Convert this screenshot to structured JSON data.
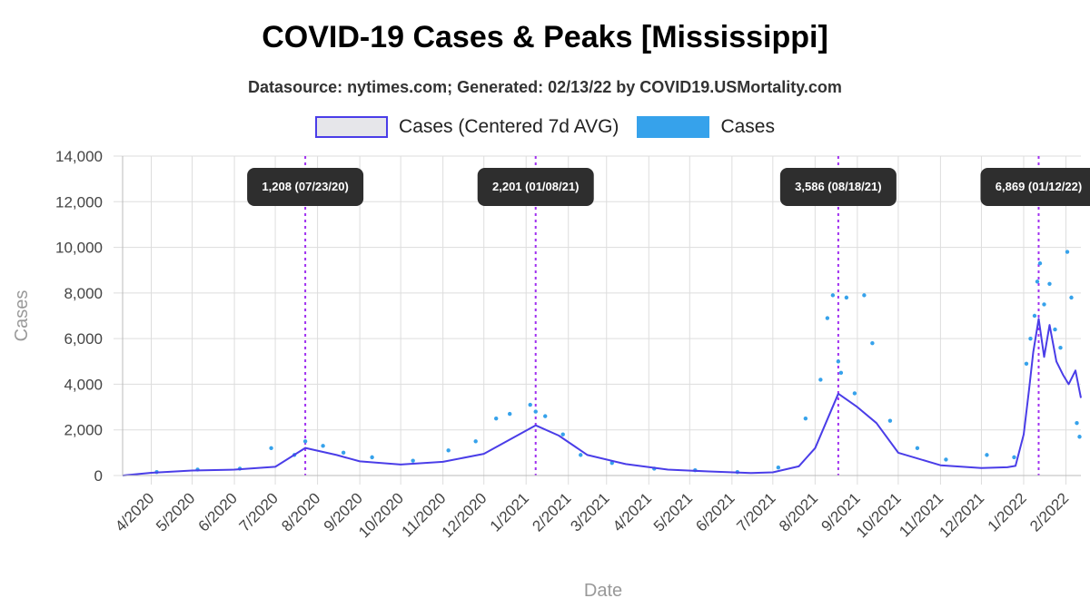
{
  "header": {
    "title": "COVID-19 Cases & Peaks [Mississippi]",
    "subtitle": "Datasource: nytimes.com; Generated: 02/13/22 by COVID19.USMortality.com"
  },
  "legend": {
    "avg_label": "Cases (Centered 7d AVG)",
    "cases_label": "Cases"
  },
  "colors": {
    "avg_line": "#4a3de8",
    "cases_points": "#36a2eb",
    "peak_line": "#a030f0",
    "peak_label_bg": "#2e2e2e",
    "grid": "#dddddd"
  },
  "chart_data": {
    "type": "line",
    "title": "COVID-19 Cases & Peaks [Mississippi]",
    "xlabel": "Date",
    "ylabel": "Cases",
    "ylim": [
      0,
      14000
    ],
    "yticks": [
      0,
      2000,
      4000,
      6000,
      8000,
      10000,
      12000,
      14000
    ],
    "ytick_labels": [
      "0",
      "2,000",
      "4,000",
      "6,000",
      "8,000",
      "10,000",
      "12,000",
      "14,000"
    ],
    "xlim": [
      "2020-03-11",
      "2022-02-12"
    ],
    "xticks": [
      "2020-04-01",
      "2020-05-01",
      "2020-06-01",
      "2020-07-01",
      "2020-08-01",
      "2020-09-01",
      "2020-10-01",
      "2020-11-01",
      "2020-12-01",
      "2021-01-01",
      "2021-02-01",
      "2021-03-01",
      "2021-04-01",
      "2021-05-01",
      "2021-06-01",
      "2021-07-01",
      "2021-08-01",
      "2021-09-01",
      "2021-10-01",
      "2021-11-01",
      "2021-12-01",
      "2022-01-01",
      "2022-02-01"
    ],
    "xtick_labels": [
      "4/2020",
      "5/2020",
      "6/2020",
      "7/2020",
      "8/2020",
      "9/2020",
      "10/2020",
      "11/2020",
      "12/2020",
      "1/2021",
      "2/2021",
      "3/2021",
      "4/2021",
      "5/2021",
      "6/2021",
      "7/2021",
      "8/2021",
      "9/2021",
      "10/2021",
      "11/2021",
      "12/2021",
      "1/2022",
      "2/2022"
    ],
    "grid": true,
    "legend_position": "top",
    "series": [
      {
        "name": "Cases (Centered 7d AVG)",
        "type": "line",
        "x": [
          "2020-03-11",
          "2020-04-01",
          "2020-05-01",
          "2020-06-01",
          "2020-07-01",
          "2020-07-23",
          "2020-08-15",
          "2020-09-01",
          "2020-10-01",
          "2020-11-01",
          "2020-12-01",
          "2021-01-08",
          "2021-01-25",
          "2021-02-15",
          "2021-03-15",
          "2021-04-15",
          "2021-05-15",
          "2021-06-15",
          "2021-07-01",
          "2021-07-20",
          "2021-08-01",
          "2021-08-18",
          "2021-09-01",
          "2021-09-15",
          "2021-10-01",
          "2021-11-01",
          "2021-12-01",
          "2021-12-20",
          "2021-12-26",
          "2022-01-01",
          "2022-01-05",
          "2022-01-08",
          "2022-01-12",
          "2022-01-16",
          "2022-01-20",
          "2022-01-25",
          "2022-01-30",
          "2022-02-03",
          "2022-02-08",
          "2022-02-12"
        ],
        "y": [
          0,
          120,
          220,
          260,
          380,
          1208,
          900,
          620,
          480,
          600,
          950,
          2201,
          1750,
          900,
          500,
          260,
          180,
          110,
          140,
          400,
          1200,
          3586,
          3000,
          2300,
          1000,
          450,
          330,
          360,
          420,
          1800,
          3800,
          5400,
          6869,
          5200,
          6600,
          5000,
          4400,
          4000,
          4600,
          3400
        ]
      },
      {
        "name": "Cases",
        "type": "scatter",
        "x": [
          "2020-04-05",
          "2020-05-05",
          "2020-06-05",
          "2020-06-28",
          "2020-07-15",
          "2020-07-23",
          "2020-08-05",
          "2020-08-20",
          "2020-09-10",
          "2020-10-10",
          "2020-11-05",
          "2020-11-25",
          "2020-12-10",
          "2020-12-20",
          "2021-01-04",
          "2021-01-08",
          "2021-01-15",
          "2021-01-28",
          "2021-02-10",
          "2021-03-05",
          "2021-04-05",
          "2021-05-05",
          "2021-06-05",
          "2021-07-05",
          "2021-07-25",
          "2021-08-05",
          "2021-08-10",
          "2021-08-14",
          "2021-08-18",
          "2021-08-20",
          "2021-08-24",
          "2021-08-30",
          "2021-09-06",
          "2021-09-12",
          "2021-09-25",
          "2021-10-15",
          "2021-11-05",
          "2021-12-05",
          "2021-12-25",
          "2022-01-03",
          "2022-01-06",
          "2022-01-09",
          "2022-01-11",
          "2022-01-13",
          "2022-01-16",
          "2022-01-20",
          "2022-01-24",
          "2022-01-28",
          "2022-02-02",
          "2022-02-05",
          "2022-02-09",
          "2022-02-11"
        ],
        "y": [
          150,
          260,
          300,
          1200,
          900,
          1500,
          1300,
          1000,
          800,
          650,
          1100,
          1500,
          2500,
          2700,
          3100,
          2800,
          2600,
          1800,
          900,
          550,
          300,
          230,
          150,
          350,
          2500,
          4200,
          6900,
          7900,
          5000,
          4500,
          7800,
          3600,
          7900,
          5800,
          2400,
          1200,
          700,
          900,
          800,
          4900,
          6000,
          7000,
          8500,
          9300,
          7500,
          8400,
          6400,
          5600,
          9800,
          7800,
          2300,
          1700
        ]
      }
    ],
    "annotations": [
      {
        "label": "1,208 (07/23/20)",
        "x": "2020-07-23"
      },
      {
        "label": "2,201 (01/08/21)",
        "x": "2021-01-08"
      },
      {
        "label": "3,586 (08/18/21)",
        "x": "2021-08-18"
      },
      {
        "label": "6,869 (01/12/22)",
        "x": "2022-01-12"
      }
    ]
  }
}
